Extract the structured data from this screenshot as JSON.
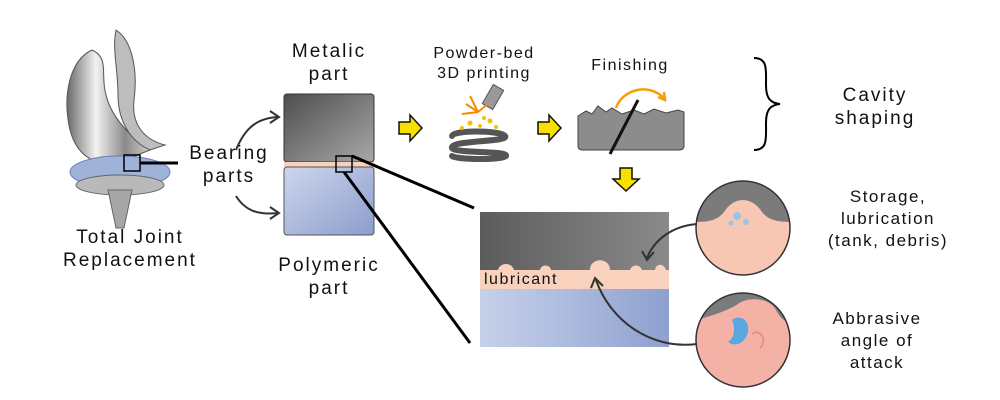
{
  "labels": {
    "total_joint": [
      "Total Joint",
      "Replacement"
    ],
    "bearing_parts": [
      "Bearing",
      "parts"
    ],
    "metallic_part": [
      "Metalic",
      "part"
    ],
    "polymeric_part": [
      "Polymeric",
      "part"
    ],
    "powder_bed": [
      "Powder-bed",
      "3D printing"
    ],
    "finishing": "Finishing",
    "cavity_shaping": [
      "Cavity",
      "shaping"
    ],
    "lubricant": "lubricant",
    "storage": [
      "Storage,",
      "lubrication",
      "(tank, debris)"
    ],
    "abrasive": [
      "Abbrasive",
      "angle of",
      "attack"
    ]
  },
  "colors": {
    "metal_dark": "#5a5a5a",
    "metal_light": "#a9a9a9",
    "polymer_light": "#c9d3ea",
    "polymer_dark": "#8f9fcf",
    "lubricant": "#f8d2bd",
    "arrow_yellow": "#f7e000"
  }
}
